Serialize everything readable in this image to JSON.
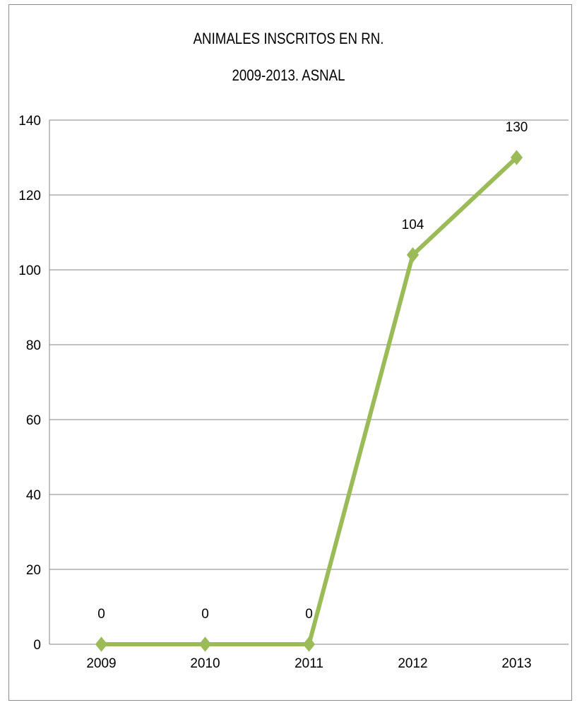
{
  "chart_data": {
    "type": "line",
    "title_line1": "ANIMALES INSCRITOS EN RN.",
    "title_line2": "2009-2013. ASNAL",
    "categories": [
      "2009",
      "2010",
      "2011",
      "2012",
      "2013"
    ],
    "values": [
      0,
      0,
      0,
      104,
      130
    ],
    "data_labels": [
      "0",
      "0",
      "0",
      "104",
      "130"
    ],
    "y_ticks": [
      "0",
      "20",
      "40",
      "60",
      "80",
      "100",
      "120",
      "140"
    ],
    "ylim": [
      0,
      140
    ],
    "grid": true,
    "line_color": "#9bbb59",
    "marker": "diamond"
  }
}
